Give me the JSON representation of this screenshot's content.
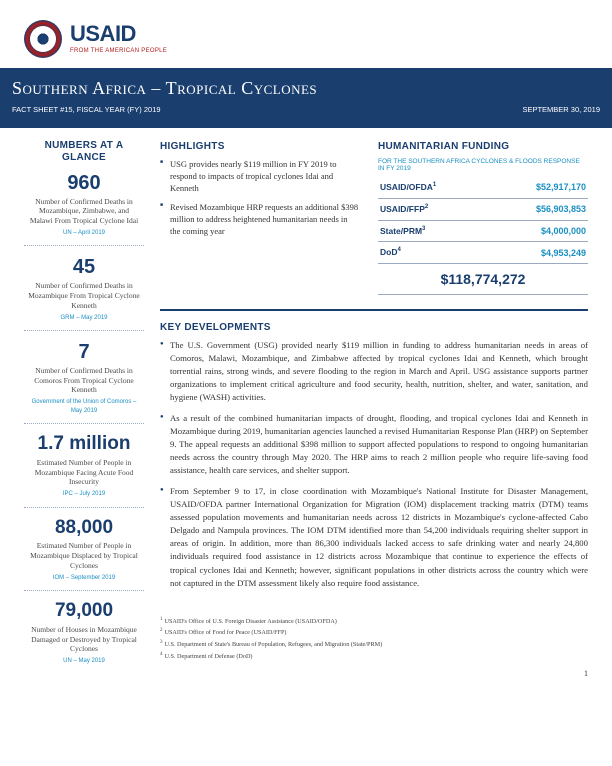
{
  "logo": {
    "word": "USAID",
    "tagline": "FROM THE AMERICAN PEOPLE"
  },
  "title": {
    "main": "Southern Africa – Tropical Cyclones",
    "factsheet": "FACT SHEET #15, FISCAL YEAR (FY) 2019",
    "date": "SEPTEMBER 30, 2019"
  },
  "sidebar": {
    "heading": "NUMBERS AT A GLANCE",
    "stats": [
      {
        "num": "960",
        "desc": "Number of Confirmed Deaths in Mozambique, Zimbabwe, and Malawi From Tropical Cyclone Idai",
        "src": "UN – April 2019"
      },
      {
        "num": "45",
        "desc": "Number of Confirmed Deaths in Mozambique From Tropical Cyclone Kenneth",
        "src": "GRM – May 2019"
      },
      {
        "num": "7",
        "desc": "Number of Confirmed Deaths in Comoros From Tropical Cyclone Kenneth",
        "src": "Government of the Union of Comoros – May 2019"
      },
      {
        "num": "1.7 million",
        "desc": "Estimated Number of People in Mozambique Facing Acute Food Insecurity",
        "src": "IPC – July 2019"
      },
      {
        "num": "88,000",
        "desc": "Estimated Number of People in Mozambique Displaced by Tropical Cyclones",
        "src": "IOM – September 2019"
      },
      {
        "num": "79,000",
        "desc": "Number of Houses in Mozambique Damaged or Destroyed by Tropical Cyclones",
        "src": "UN – May 2019"
      }
    ]
  },
  "highlights": {
    "heading": "HIGHLIGHTS",
    "items": [
      "USG provides nearly $119 million in FY 2019 to respond to impacts of tropical cyclones Idai and Kenneth",
      "Revised Mozambique HRP requests an additional $398 million to address heightened humanitarian needs in the coming year"
    ]
  },
  "funding": {
    "heading": "HUMANITARIAN FUNDING",
    "subtitle": "FOR THE SOUTHERN AFRICA CYCLONES & FLOODS RESPONSE IN FY 2019",
    "rows": [
      {
        "label": "USAID/OFDA",
        "sup": "1",
        "value": "$52,917,170"
      },
      {
        "label": "USAID/FFP",
        "sup": "2",
        "value": "$56,903,853"
      },
      {
        "label": "State/PRM",
        "sup": "3",
        "value": "$4,000,000"
      },
      {
        "label": "DoD",
        "sup": "4",
        "value": "$4,953,249"
      }
    ],
    "total": "$118,774,272"
  },
  "keydev": {
    "heading": "KEY DEVELOPMENTS",
    "items": [
      "The U.S. Government (USG) provided nearly $119 million in funding to address humanitarian needs in areas of Comoros, Malawi, Mozambique, and Zimbabwe affected by tropical cyclones Idai and Kenneth, which brought torrential rains, strong winds, and severe flooding to the region in March and April.  USG assistance supports partner organizations to implement critical agriculture and food security, health, nutrition, shelter, and water, sanitation, and hygiene (WASH) activities.",
      "As a result of the combined humanitarian impacts of drought, flooding, and tropical cyclones Idai and Kenneth in Mozambique during 2019, humanitarian agencies launched a revised Humanitarian Response Plan (HRP) on September 9.  The appeal requests an additional $398 million to support affected populations to respond to ongoing humanitarian needs across the country through May 2020.  The HRP aims to reach 2 million people who require life-saving food assistance, health care services, and shelter support.",
      "From September 9 to 17, in close coordination with Mozambique's National Institute for Disaster Management, USAID/OFDA partner International Organization for Migration (IOM) displacement tracking matrix (DTM) teams assessed population movements and humanitarian needs across 12 districts in Mozambique's cyclone-affected Cabo Delgado and Nampula provinces.  The IOM DTM identified more than 54,200 individuals requiring shelter support in areas of origin.  In addition, more than 86,300 individuals lacked access to safe drinking water and nearly 24,800 individuals required food assistance in 12 districts across Mozambique that continue to experience the effects of tropical cyclones Idai and Kenneth; however, significant populations in other districts across the country which were not captured in the DTM assessment likely also require food assistance."
    ]
  },
  "footnotes": [
    "USAID's Office of U.S. Foreign Disaster Assistance (USAID/OFDA)",
    "USAID's Office of Food for Peace (USAID/FFP)",
    "U.S. Department of State's Bureau of Population, Refugees, and Migration (State/PRM)",
    "U.S. Department of Defense (DoD)"
  ],
  "page_number": "1",
  "colors": {
    "primary": "#1a3e6e",
    "accent": "#1a8fc4",
    "red": "#b31b1b"
  }
}
